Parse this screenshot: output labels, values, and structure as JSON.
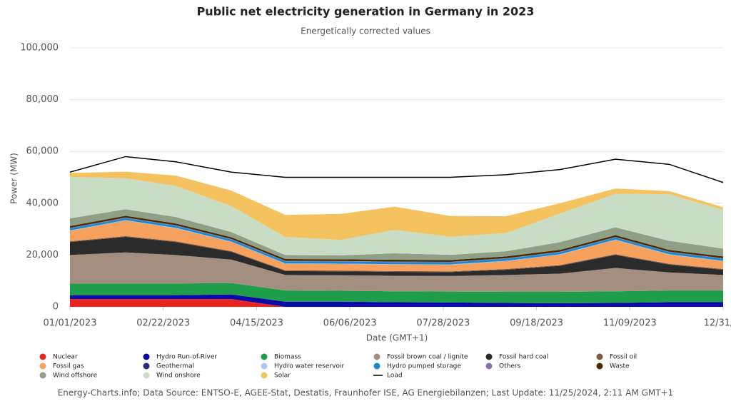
{
  "chart_data": {
    "type": "stacked_area",
    "title": "Public net electricity generation in Germany in 2023",
    "subtitle": "Energetically corrected values",
    "x_label": "Date (GMT+1)",
    "y_label": "Power (MW)",
    "footer": "Energy-Charts.info; Data Source: ENTSO-E, AGEE-Stat, Destatis, Fraunhofer ISE, AG Energiebilanzen; Last Update: 11/25/2024, 2:11 AM GMT+1",
    "x": [
      "01/01/2023",
      "02/01/2023",
      "03/01/2023",
      "04/01/2023",
      "05/01/2023",
      "06/01/2023",
      "07/01/2023",
      "08/01/2023",
      "09/01/2023",
      "10/01/2023",
      "11/01/2023",
      "12/01/2023",
      "12/31/2023"
    ],
    "xlim": [
      "01/01/2023",
      "12/31/2023"
    ],
    "xticks": [
      "01/01/2023",
      "02/22/2023",
      "04/15/2023",
      "06/06/2023",
      "07/28/2023",
      "09/18/2023",
      "11/09/2023",
      {
        "value": "12/31/2023",
        "label": "12/31/…"
      }
    ],
    "ylim": [
      0,
      100000
    ],
    "yticks": [
      0,
      {
        "value": 20000,
        "label": "20,000"
      },
      {
        "value": 40000,
        "label": "40,000"
      },
      {
        "value": 60000,
        "label": "60,000"
      },
      {
        "value": 80000,
        "label": "80,000"
      },
      {
        "value": 100000,
        "label": "100,000"
      }
    ],
    "grid": true,
    "series": [
      {
        "name": "Nuclear",
        "color": "#e8251f",
        "values": [
          3000,
          3000,
          3000,
          3000,
          0,
          0,
          0,
          0,
          0,
          0,
          0,
          0,
          0
        ]
      },
      {
        "name": "Hydro Run-of-River",
        "color": "#0a0aa8",
        "values": [
          1500,
          1500,
          1500,
          1800,
          2000,
          2000,
          1800,
          1700,
          1500,
          1400,
          1500,
          1800,
          1800
        ]
      },
      {
        "name": "Biomass",
        "color": "#1f9e4a",
        "values": [
          4500,
          4500,
          4500,
          4400,
          4300,
          4200,
          4200,
          4200,
          4300,
          4400,
          4500,
          4500,
          4500
        ]
      },
      {
        "name": "Fossil brown coal / lignite",
        "color": "#a38e80",
        "values": [
          11000,
          12000,
          11000,
          9000,
          6000,
          6000,
          6000,
          6000,
          6500,
          7000,
          9000,
          7000,
          6000
        ]
      },
      {
        "name": "Fossil hard coal",
        "color": "#2b2b2b",
        "values": [
          5000,
          6000,
          5000,
          3000,
          1500,
          1500,
          1500,
          1500,
          2000,
          3000,
          5000,
          3000,
          2000
        ]
      },
      {
        "name": "Fossil oil",
        "color": "#7a5a42",
        "values": [
          300,
          300,
          300,
          300,
          300,
          300,
          300,
          300,
          300,
          300,
          300,
          300,
          300
        ]
      },
      {
        "name": "Fossil gas",
        "color": "#f7a15e",
        "values": [
          4000,
          6000,
          5000,
          3500,
          2500,
          2500,
          2500,
          2500,
          3000,
          4000,
          5500,
          3500,
          3000
        ]
      },
      {
        "name": "Geothermal",
        "color": "#2e2e78",
        "values": [
          20,
          20,
          20,
          20,
          20,
          20,
          20,
          20,
          20,
          20,
          20,
          20,
          20
        ]
      },
      {
        "name": "Hydro water reservoir",
        "color": "#a9c9f2",
        "values": [
          150,
          150,
          150,
          150,
          150,
          150,
          150,
          150,
          150,
          150,
          150,
          150,
          150
        ]
      },
      {
        "name": "Hydro pumped storage",
        "color": "#1a8ad0",
        "values": [
          800,
          800,
          800,
          800,
          800,
          800,
          800,
          800,
          800,
          800,
          800,
          800,
          800
        ]
      },
      {
        "name": "Others",
        "color": "#8a72b2",
        "values": [
          200,
          200,
          200,
          200,
          200,
          200,
          200,
          200,
          200,
          200,
          200,
          200,
          200
        ]
      },
      {
        "name": "Waste",
        "color": "#4a2b00",
        "values": [
          700,
          700,
          700,
          700,
          700,
          700,
          700,
          700,
          700,
          700,
          700,
          700,
          700
        ]
      },
      {
        "name": "Wind offshore",
        "color": "#8fa087",
        "values": [
          3000,
          2500,
          2500,
          2000,
          1500,
          1500,
          2500,
          2000,
          2000,
          3000,
          3000,
          3500,
          3000
        ]
      },
      {
        "name": "Wind onshore",
        "color": "#c9dcc4",
        "values": [
          16000,
          12000,
          12000,
          10000,
          7000,
          6000,
          9000,
          7000,
          7000,
          11000,
          13000,
          18000,
          15000
        ]
      },
      {
        "name": "Solar",
        "color": "#f5c260",
        "values": [
          1500,
          2500,
          4000,
          6000,
          8500,
          10000,
          9000,
          8000,
          6500,
          4000,
          2000,
          1200,
          1000
        ]
      },
      {
        "name": "Load",
        "color": "#000000",
        "type": "line",
        "values": [
          52000,
          58000,
          56000,
          52000,
          50000,
          50000,
          50000,
          50000,
          51000,
          53000,
          57000,
          55000,
          48000
        ]
      }
    ]
  }
}
